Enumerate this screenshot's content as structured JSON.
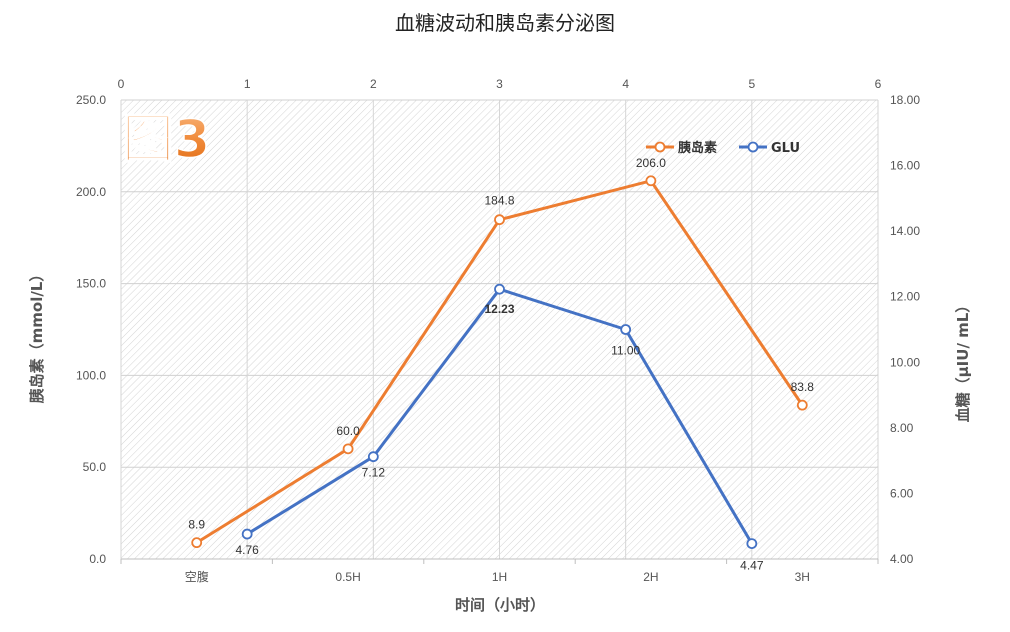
{
  "chart_data": {
    "type": "line",
    "title": "血糖波动和胰岛素分泌图",
    "badge": "图3",
    "xlabel": "时间（小时）",
    "categories": [
      "空腹",
      "0.5H",
      "1H",
      "2H",
      "3H"
    ],
    "secondary_x_ticks": [
      "0",
      "1",
      "2",
      "3",
      "4",
      "5",
      "6"
    ],
    "secondary_x_range": [
      0,
      6
    ],
    "ylabel_left": "胰岛素（mmol/L）",
    "ylim_left": [
      0,
      250
    ],
    "yticks_left": [
      "0.0",
      "50.0",
      "100.0",
      "150.0",
      "200.0",
      "250.0"
    ],
    "ylabel_right": "血糖（µIU/ mL）",
    "ylim_right": [
      4,
      18
    ],
    "yticks_right": [
      "4.00",
      "6.00",
      "8.00",
      "10.00",
      "12.00",
      "14.00",
      "16.00",
      "18.00"
    ],
    "grid": true,
    "legend_position": "top-right",
    "series": [
      {
        "name": "胰岛素",
        "axis": "left",
        "color": "#ED7D31",
        "values": [
          8.9,
          60.0,
          184.8,
          206.0,
          83.8
        ],
        "labels": [
          "8.9",
          "60.0",
          "184.8",
          "206.0",
          "83.8"
        ]
      },
      {
        "name": "GLU",
        "axis": "right",
        "secondary_x": [
          1,
          2,
          3,
          4,
          5
        ],
        "color": "#4472C4",
        "values": [
          4.76,
          7.12,
          12.23,
          11.0,
          4.47
        ],
        "labels": [
          "4.76",
          "7.12",
          "12.23",
          "11.00",
          "4.47"
        ],
        "highlight_label_index": 2,
        "highlight_color": "#E00000"
      }
    ]
  }
}
